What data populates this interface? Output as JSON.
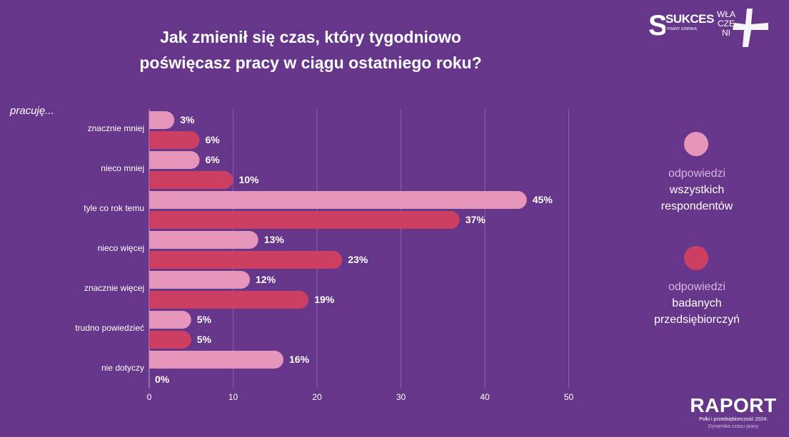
{
  "title": {
    "line1": "Jak zmienił się czas, który tygodniowo",
    "line2": "poświęcasz pracy w ciągu ostatniego roku?"
  },
  "prefix": "pracuję...",
  "legend": {
    "all": {
      "line1": "odpowiedzi",
      "line2": "wszystkich",
      "line3": "respondentów",
      "color": "#e695ba"
    },
    "biz": {
      "line1": "odpowiedzi",
      "line2": "badanych",
      "line3": "przedsiębiorczyń",
      "color": "#cc3f63"
    }
  },
  "logos": {
    "sukces_mark": "S",
    "sukces_brand": "SUKCES",
    "sukces_sub": "PISANY SZMINKĄ",
    "wla_line1": "WŁA",
    "wla_line2": "CZE",
    "wla_line3": "NI"
  },
  "footer": {
    "big": "RAPORT",
    "line1": "Polki i przedsiębiorczość 2024:",
    "line2": "Dynamika czasu pracy"
  },
  "chart_data": {
    "type": "bar",
    "orientation": "horizontal",
    "categories": [
      "znacznie mniej",
      "nieco mniej",
      "tyle co rok temu",
      "nieco więcej",
      "znacznie więcej",
      "trudno powiedzieć",
      "nie dotyczy"
    ],
    "series": [
      {
        "name": "odpowiedzi wszystkich respondentów",
        "values": [
          3,
          6,
          45,
          13,
          12,
          5,
          16
        ],
        "labels": [
          "3%",
          "6%",
          "45%",
          "13%",
          "12%",
          "5%",
          "16%"
        ],
        "color": "#e695ba"
      },
      {
        "name": "odpowiedzi badanych przedsiębiorczyń",
        "values": [
          6,
          10,
          37,
          23,
          19,
          5,
          0
        ],
        "labels": [
          "6%",
          "10%",
          "37%",
          "23%",
          "19%",
          "5%",
          "0%"
        ],
        "color": "#cc3f63"
      }
    ],
    "x_ticks": [
      "0",
      "10",
      "20",
      "30",
      "40",
      "50"
    ],
    "xlim": [
      0,
      50
    ],
    "grid": true,
    "legend_position": "right"
  }
}
